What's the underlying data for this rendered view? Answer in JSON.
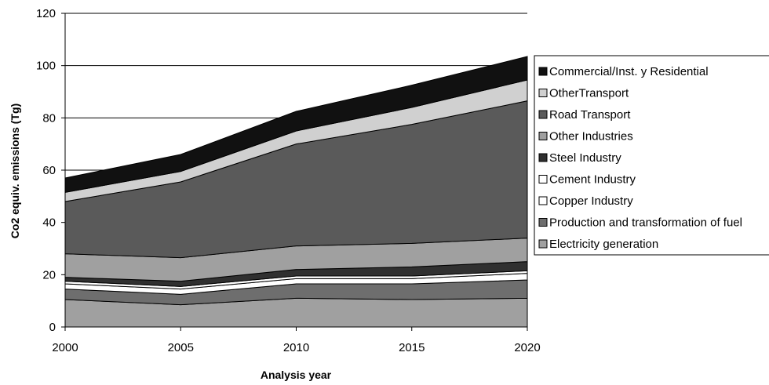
{
  "chart_data": {
    "type": "area",
    "stacked": true,
    "xlabel": "Analysis year",
    "ylabel": "Co2 equiv. emissions (Tg)",
    "x": [
      2000,
      2005,
      2010,
      2015,
      2020
    ],
    "ylim": [
      0,
      120
    ],
    "yticks": [
      0,
      20,
      40,
      60,
      80,
      100,
      120
    ],
    "grid": "horizontal",
    "legend_position": "right",
    "series": [
      {
        "name": "Electricity generation",
        "values": [
          10.5,
          8.5,
          11,
          10.5,
          11
        ],
        "color": "#a0a0a0"
      },
      {
        "name": "Production and transformation of fuel",
        "values": [
          4,
          4,
          5.5,
          6,
          7
        ],
        "color": "#6e6e6e"
      },
      {
        "name": "Copper Industry",
        "values": [
          2,
          2,
          2,
          2,
          2.5
        ],
        "color": "#ffffff"
      },
      {
        "name": "Cement Industry",
        "values": [
          1,
          1,
          1,
          1,
          1
        ],
        "color": "#ffffff"
      },
      {
        "name": "Steel Industry",
        "values": [
          1.5,
          2,
          2.5,
          3.5,
          3.5
        ],
        "color": "#303030"
      },
      {
        "name": "Other Industries",
        "values": [
          9,
          9,
          9,
          9,
          9
        ],
        "color": "#a0a0a0"
      },
      {
        "name": "Road Transport",
        "values": [
          20,
          29,
          39,
          45.5,
          52.5
        ],
        "color": "#5a5a5a"
      },
      {
        "name": "OtherTransport",
        "values": [
          3.5,
          4,
          5,
          6.5,
          8
        ],
        "color": "#d0d0d0"
      },
      {
        "name": "Commercial/Inst. y Residential",
        "values": [
          5.5,
          6.5,
          7.5,
          8.5,
          9
        ],
        "color": "#111111"
      }
    ]
  }
}
